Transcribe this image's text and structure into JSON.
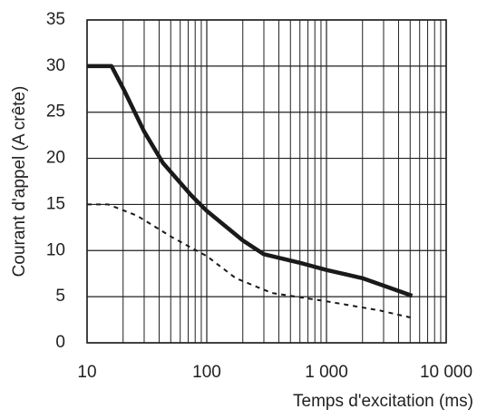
{
  "chart_data": {
    "type": "line",
    "xlabel": "Temps d'excitation (ms)",
    "ylabel": "Courant d'appel (A crête)",
    "xscale": "log",
    "xlim": [
      10,
      10000
    ],
    "xticks": [
      10,
      100,
      {
        "value": 1000,
        "label": "1 000"
      },
      {
        "value": 10000,
        "label": "10 000"
      }
    ],
    "ylim": [
      0,
      35
    ],
    "yticks": [
      0,
      5,
      10,
      15,
      20,
      25,
      30,
      35
    ],
    "grid": true,
    "series": [
      {
        "color": "#1a1a1a",
        "style": "solid",
        "x": [
          10,
          16,
          20,
          30,
          43,
          74,
          100,
          200,
          300,
          590,
          1000,
          2000,
          5200
        ],
        "values": [
          30,
          30,
          27.6,
          22.9,
          19.5,
          16,
          14.3,
          11.1,
          9.6,
          8.7,
          7.9,
          7,
          5.1
        ]
      },
      {
        "color": "#1a1a1a",
        "style": "dashed",
        "x": [
          10,
          15,
          26,
          52,
          100,
          175,
          350,
          1000,
          2800,
          5200
        ],
        "values": [
          15,
          15,
          13.8,
          11.4,
          9.4,
          7,
          5.4,
          4.5,
          3.5,
          2.7
        ]
      }
    ]
  }
}
